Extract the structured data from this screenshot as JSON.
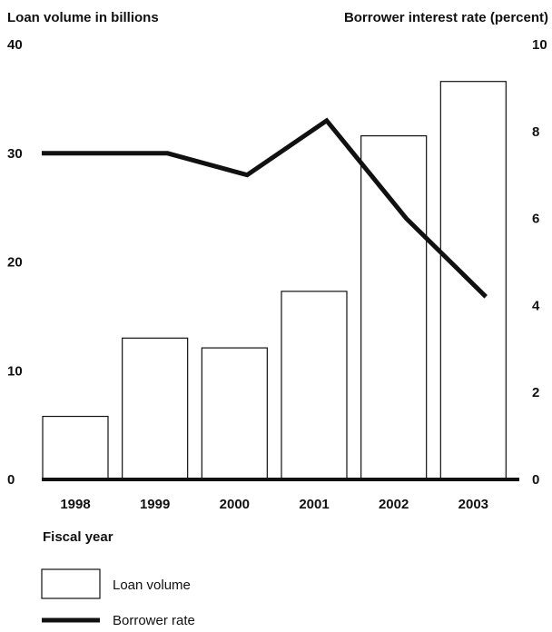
{
  "chart_data": {
    "type": "bar",
    "categories": [
      "1998",
      "1999",
      "2000",
      "2001",
      "2002",
      "2003"
    ],
    "series": [
      {
        "name": "Loan volume",
        "type": "bar",
        "axis": "left",
        "values": [
          5.8,
          13.0,
          12.1,
          17.3,
          31.6,
          36.6
        ]
      },
      {
        "name": "Borrower rate",
        "type": "line",
        "axis": "right",
        "values": [
          7.5,
          7.5,
          7.0,
          8.25,
          6.0,
          4.2
        ]
      }
    ],
    "ylabel_left": "Loan volume in billions",
    "ylabel_right": "Borrower interest rate (percent)",
    "xlabel": "Fiscal year",
    "ylim_left": [
      0,
      40
    ],
    "ylim_right": [
      0,
      10
    ],
    "yticks_left": [
      "0",
      "10",
      "20",
      "30",
      "40"
    ],
    "yticks_right": [
      "0",
      "2",
      "4",
      "6",
      "8",
      "10"
    ],
    "grid": false,
    "legend": {
      "placement": "bottom-left",
      "items": [
        "Loan volume",
        "Borrower rate"
      ]
    },
    "colors": {
      "ink": "#111111",
      "bar_fill": "#ffffff"
    }
  }
}
